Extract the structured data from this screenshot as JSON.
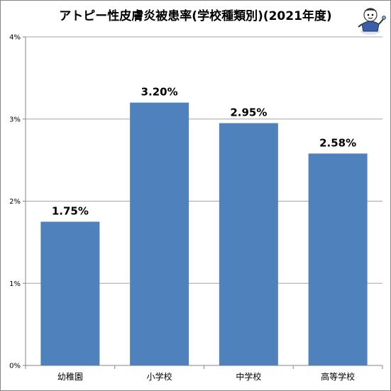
{
  "chart_data": {
    "type": "bar",
    "title": "アトピー性皮膚炎被患率(学校種類別)(2021年度)",
    "categories": [
      "幼稚園",
      "小学校",
      "中学校",
      "高等学校"
    ],
    "values": [
      1.75,
      3.2,
      2.95,
      2.58
    ],
    "data_labels": [
      "1.75%",
      "3.20%",
      "2.95%",
      "2.58%"
    ],
    "ylim": [
      0,
      4
    ],
    "yticks": [
      "0%",
      "1%",
      "2%",
      "3%",
      "4%"
    ],
    "xlabel": "",
    "ylabel": "",
    "grid": true,
    "bar_color": "#4f81bd",
    "grid_color": "#a6a6a6"
  },
  "mascot": {
    "icon": "mascot-icon"
  }
}
